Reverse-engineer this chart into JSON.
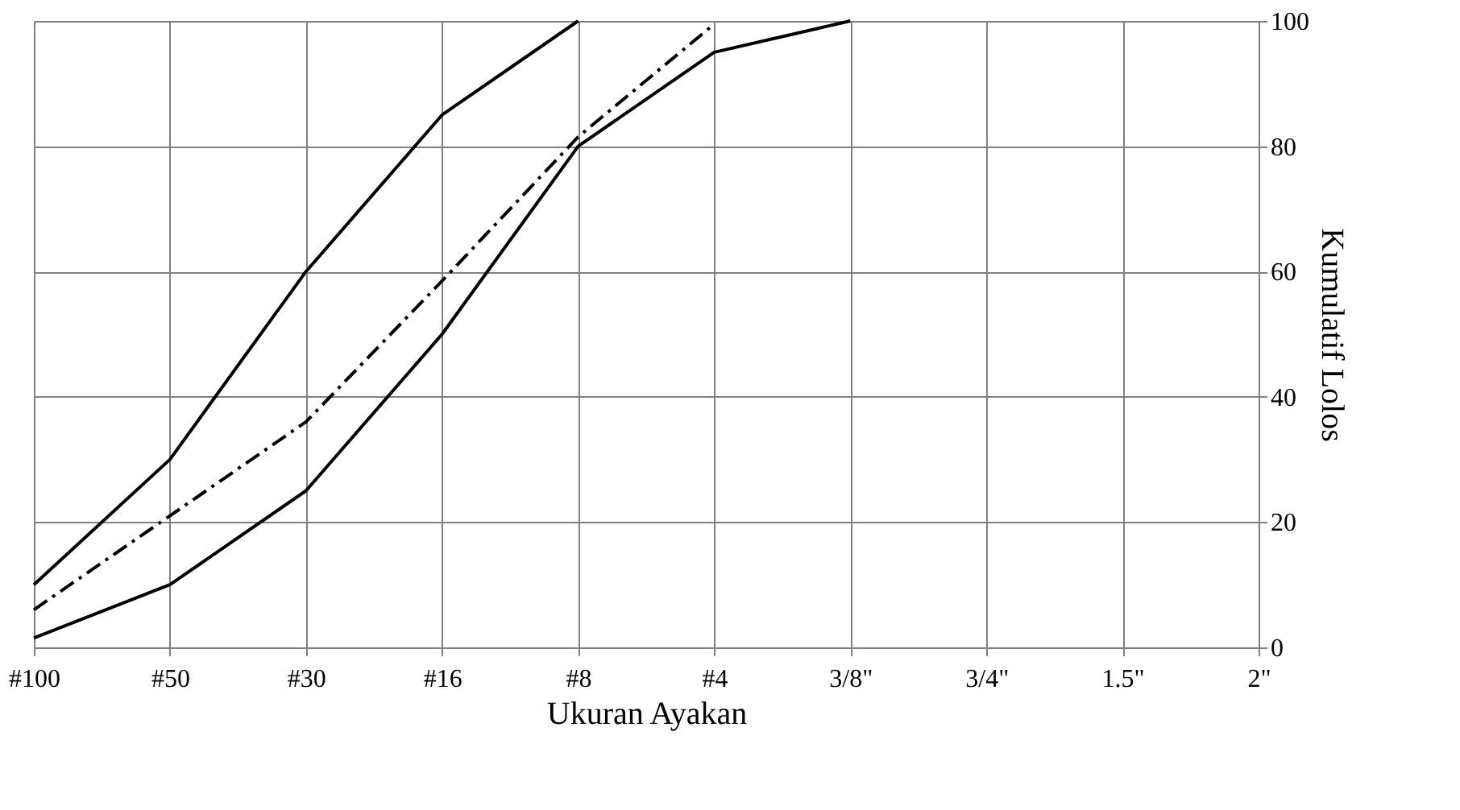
{
  "chart_data": {
    "type": "line",
    "xlabel": "Ukuran Ayakan",
    "ylabel": "Kumulatif Lolos",
    "categories": [
      "#100",
      "#50",
      "#30",
      "#16",
      "#8",
      "#4",
      "3/8\"",
      "3/4\"",
      "1.5\"",
      "2\""
    ],
    "series": [
      {
        "color": "#000000",
        "line_style": "solid",
        "values": [
          10,
          30,
          60,
          85,
          100,
          null,
          null,
          null,
          null,
          null
        ]
      },
      {
        "color": "#000000",
        "line_style": "solid",
        "values": [
          1.5,
          10,
          25,
          50,
          80,
          95,
          100,
          null,
          null,
          null
        ]
      },
      {
        "color": "#000000",
        "line_style": "dashed",
        "values": [
          6,
          21,
          36,
          58.5,
          81.5,
          99.5,
          null,
          null,
          null,
          null
        ]
      }
    ],
    "ylim": [
      0,
      100
    ],
    "yticks": [
      0,
      20,
      40,
      60,
      80,
      100
    ],
    "grid": true,
    "marker": "none"
  }
}
